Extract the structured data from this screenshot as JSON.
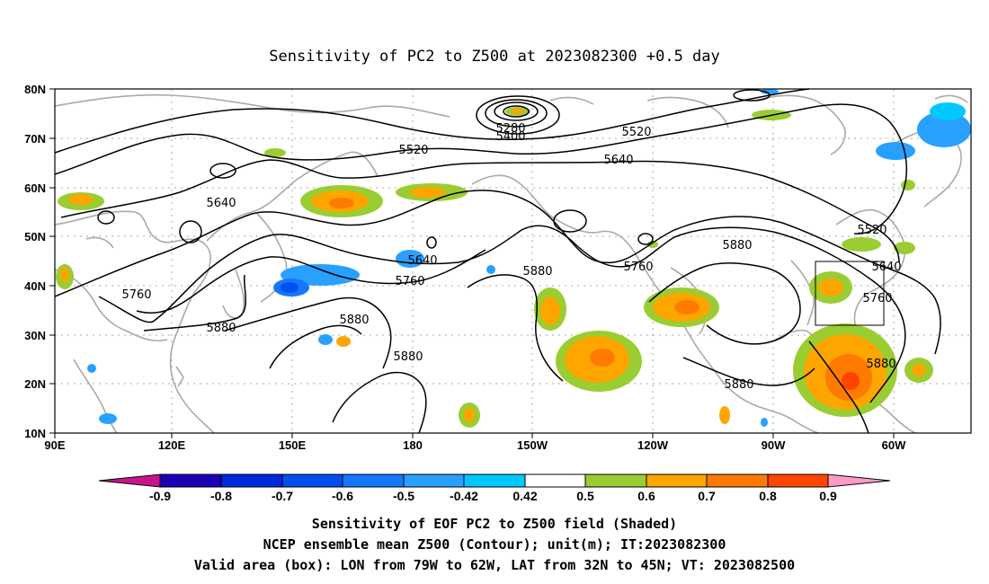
{
  "title": "Sensitivity of PC2 to Z500 at 2023082300 +0.5 day",
  "map": {
    "lat_labels": [
      "80N",
      "70N",
      "60N",
      "50N",
      "40N",
      "30N",
      "20N",
      "10N"
    ],
    "lon_labels": [
      "90E",
      "120E",
      "150E",
      "180",
      "150W",
      "120W",
      "90W",
      "60W"
    ],
    "lon_range": [
      "90E",
      "45W"
    ],
    "lat_range": [
      "10N",
      "80N"
    ]
  },
  "contour_labels": [
    "5280",
    "5400",
    "5520",
    "5520",
    "5640",
    "5640",
    "5640",
    "5760",
    "5760",
    "5760",
    "5880",
    "5880",
    "5880",
    "5880",
    "5880",
    "5880",
    "5520",
    "5640",
    "5760",
    "5880"
  ],
  "valid_box": {
    "lon_from": "79W",
    "lon_to": "62W",
    "lat_from": "32N",
    "lat_to": "45N"
  },
  "colorbar": {
    "labels": [
      "-0.9",
      "-0.8",
      "-0.7",
      "-0.6",
      "-0.5",
      "-0.42",
      "0.42",
      "0.5",
      "0.6",
      "0.7",
      "0.8",
      "0.9"
    ],
    "colors": [
      "#c8148c",
      "#1a00b4",
      "#0028dc",
      "#0050f0",
      "#1478ff",
      "#28a0ff",
      "#00c8ff",
      "#ffffff",
      "#9acd32",
      "#ffa500",
      "#ff7a00",
      "#ff4500",
      "#ff0000",
      "#ff9ac8"
    ]
  },
  "caption": {
    "line1": "Sensitivity of EOF PC2 to Z500 field (Shaded)",
    "line2": "NCEP ensemble mean Z500 (Contour); unit(m); IT:2023082300",
    "line3": "Valid area (box): LON from 79W to 62W, LAT from 32N to 45N; VT: 2023082500"
  }
}
